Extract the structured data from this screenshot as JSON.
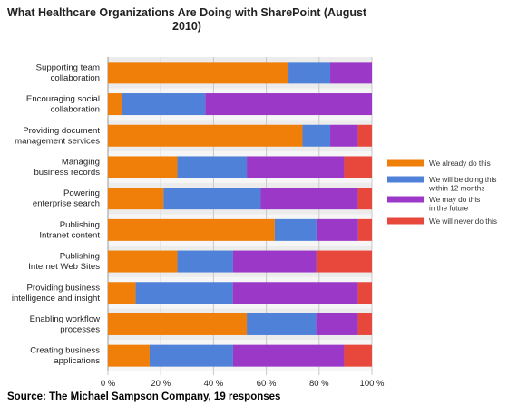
{
  "chart_data": {
    "type": "bar",
    "orientation": "horizontal",
    "stacked": "percent",
    "title": "What Healthcare Organizations Are Doing with SharePoint (August 2010)",
    "title_lines": [
      "What Healthcare Organizations Are Doing with SharePoint (August",
      "2010)"
    ],
    "xlabel": "",
    "ylabel": "",
    "xlim": [
      0,
      100
    ],
    "x_ticks": [
      0,
      20,
      40,
      60,
      80,
      100
    ],
    "x_tick_labels": [
      "0 %",
      "20 %",
      "40 %",
      "60 %",
      "80 %",
      "100 %"
    ],
    "grid": "vertical",
    "legend_position": "right",
    "categories": [
      [
        "Supporting team",
        "collaboration"
      ],
      [
        "Encouraging social",
        "collaboration"
      ],
      [
        "Providing document",
        "management services"
      ],
      [
        "Managing",
        "business records"
      ],
      [
        "Powering",
        "enterprise search"
      ],
      [
        "Publishing",
        "Intranet content"
      ],
      [
        "Publishing",
        "Internet Web Sites"
      ],
      [
        "Providing business",
        "intelligence and insight"
      ],
      [
        "Enabling workflow",
        "processes"
      ],
      [
        "Creating business",
        "applications"
      ]
    ],
    "series": [
      {
        "name": "We already do this",
        "legend_lines": [
          "We already do this"
        ],
        "color": "#f07f09",
        "values": [
          68.4,
          5.3,
          73.7,
          26.3,
          21.1,
          63.2,
          26.3,
          10.5,
          52.6,
          15.8
        ]
      },
      {
        "name": "We will be doing this within 12 months",
        "legend_lines": [
          "We will be doing this",
          "within 12 months"
        ],
        "color": "#4f81d8",
        "values": [
          15.8,
          31.6,
          10.5,
          26.3,
          36.8,
          15.8,
          21.1,
          36.8,
          26.3,
          31.6
        ]
      },
      {
        "name": "We may do this in the future",
        "legend_lines": [
          "We may do this",
          "in the future"
        ],
        "color": "#9b38c8",
        "values": [
          15.8,
          63.1,
          10.5,
          36.9,
          36.8,
          15.8,
          31.6,
          47.4,
          15.8,
          42.1
        ]
      },
      {
        "name": "We will never do this",
        "legend_lines": [
          "We will never do this"
        ],
        "color": "#e8483c",
        "values": [
          0,
          0,
          5.3,
          10.5,
          5.3,
          5.2,
          21.0,
          5.3,
          5.3,
          10.5
        ]
      }
    ]
  },
  "source": "Source: The Michael Sampson Company, 19 responses",
  "colors": {
    "band_even": "#ececec",
    "band_odd": "#f6f6f6",
    "grid": "#c8c8c8",
    "axis": "#9a9a9a"
  }
}
